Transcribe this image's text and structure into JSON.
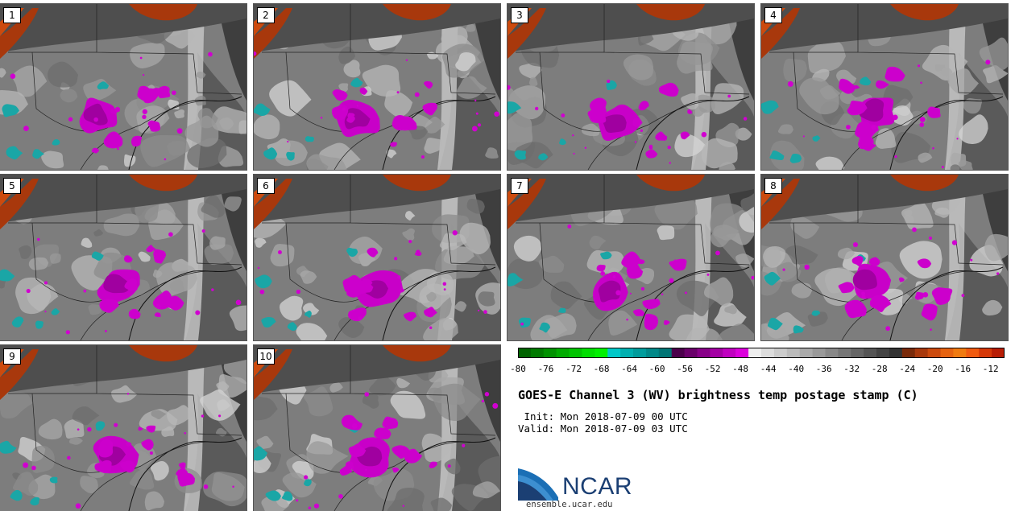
{
  "panels": [
    {
      "label": "1"
    },
    {
      "label": "2"
    },
    {
      "label": "3"
    },
    {
      "label": "4"
    },
    {
      "label": "5"
    },
    {
      "label": "6"
    },
    {
      "label": "7"
    },
    {
      "label": "8"
    },
    {
      "label": "9"
    },
    {
      "label": "10"
    }
  ],
  "colorbar": {
    "min": -80,
    "max": -10,
    "ticks": [
      "-80",
      "-76",
      "-72",
      "-68",
      "-64",
      "-60",
      "-56",
      "-52",
      "-48",
      "-44",
      "-40",
      "-36",
      "-32",
      "-28",
      "-24",
      "-20",
      "-16",
      "-12"
    ],
    "colors": [
      "#006400",
      "#007a00",
      "#009200",
      "#00ab00",
      "#00c400",
      "#00de00",
      "#00f000",
      "#00c8c8",
      "#00b0b0",
      "#009c9c",
      "#008888",
      "#007575",
      "#4b004b",
      "#6a006a",
      "#880088",
      "#a400a4",
      "#c000c0",
      "#dc00dc",
      "#eeeeee",
      "#dddddd",
      "#cccccc",
      "#bbbbbb",
      "#aaaaaa",
      "#999999",
      "#888888",
      "#777777",
      "#666666",
      "#555555",
      "#444444",
      "#333333",
      "#7a2a0a",
      "#a8380c",
      "#cc4a0e",
      "#e66210",
      "#f07a10",
      "#f05a10",
      "#d63808",
      "#b81d05"
    ]
  },
  "title": "GOES-E Channel 3 (WV) brightness temp postage stamp (C)",
  "init": " Init: Mon 2018-07-09 00 UTC",
  "valid": "Valid: Mon 2018-07-09 03 UTC",
  "logo": {
    "name": "NCAR",
    "url": "ensemble.ucar.edu"
  }
}
